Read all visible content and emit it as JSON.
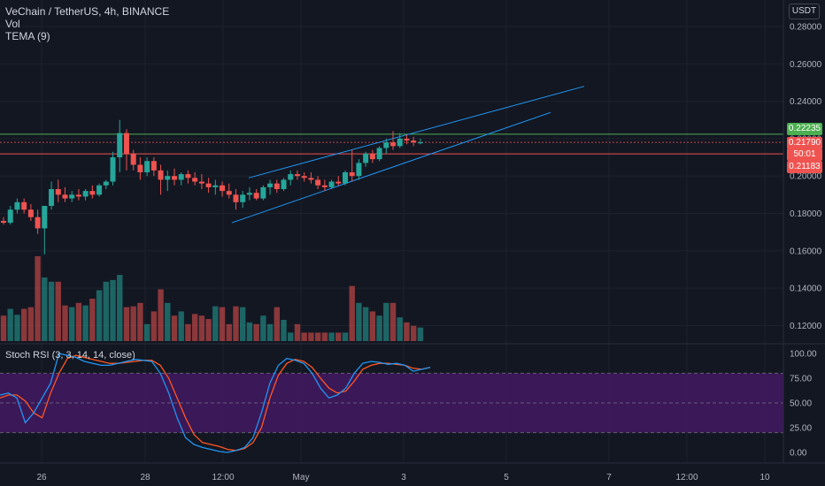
{
  "legend": {
    "symbol": "VeChain / TetherUS, 4h, BINANCE",
    "vol": "Vol",
    "tema": "TEMA (9)"
  },
  "currency_button": "USDT",
  "rsi_legend": "Stoch RSI (3, 3, 14, 14, close)",
  "price_labels": {
    "green_level": "0.22235",
    "last_price": "0.21790",
    "countdown": "50:01",
    "red_level": "0.21183"
  },
  "colors": {
    "background": "#131722",
    "up": "#26a69a",
    "down": "#ef5350",
    "channel": "#2196f3",
    "green_line": "#4caf50",
    "red_line": "#ef5350",
    "rsi_band": "#4a1a6b",
    "k_line": "#2196f3",
    "d_line": "#ff5722"
  },
  "chart_data": {
    "type": "candlestick",
    "price_axis": {
      "ticks": [
        "0.28000",
        "0.26000",
        "0.24000",
        "0.22000",
        "0.20000",
        "0.18000",
        "0.16000",
        "0.14000",
        "0.12000"
      ],
      "range": [
        0.113,
        0.287
      ]
    },
    "time_axis": {
      "ticks": [
        "26",
        "28",
        "12:00",
        "May",
        "3",
        "5",
        "7",
        "12:00",
        "10"
      ]
    },
    "candles": [
      [
        0.176,
        0.178,
        0.174,
        0.175
      ],
      [
        0.175,
        0.184,
        0.174,
        0.182
      ],
      [
        0.182,
        0.188,
        0.18,
        0.186
      ],
      [
        0.186,
        0.188,
        0.18,
        0.182
      ],
      [
        0.182,
        0.185,
        0.176,
        0.178
      ],
      [
        0.178,
        0.182,
        0.169,
        0.172
      ],
      [
        0.172,
        0.184,
        0.158,
        0.184
      ],
      [
        0.184,
        0.197,
        0.182,
        0.193
      ],
      [
        0.193,
        0.198,
        0.186,
        0.19
      ],
      [
        0.19,
        0.194,
        0.186,
        0.188
      ],
      [
        0.188,
        0.192,
        0.186,
        0.19
      ],
      [
        0.19,
        0.193,
        0.187,
        0.189
      ],
      [
        0.189,
        0.193,
        0.187,
        0.192
      ],
      [
        0.192,
        0.195,
        0.188,
        0.19
      ],
      [
        0.19,
        0.196,
        0.189,
        0.195
      ],
      [
        0.195,
        0.198,
        0.193,
        0.197
      ],
      [
        0.197,
        0.213,
        0.195,
        0.21
      ],
      [
        0.21,
        0.23,
        0.202,
        0.223
      ],
      [
        0.223,
        0.225,
        0.203,
        0.212
      ],
      [
        0.212,
        0.214,
        0.203,
        0.206
      ],
      [
        0.206,
        0.21,
        0.198,
        0.202
      ],
      [
        0.202,
        0.21,
        0.2,
        0.208
      ],
      [
        0.208,
        0.21,
        0.2,
        0.203
      ],
      [
        0.203,
        0.206,
        0.19,
        0.198
      ],
      [
        0.198,
        0.203,
        0.192,
        0.2
      ],
      [
        0.2,
        0.204,
        0.195,
        0.198
      ],
      [
        0.198,
        0.202,
        0.195,
        0.201
      ],
      [
        0.201,
        0.203,
        0.196,
        0.199
      ],
      [
        0.199,
        0.202,
        0.195,
        0.197
      ],
      [
        0.197,
        0.201,
        0.193,
        0.196
      ],
      [
        0.196,
        0.199,
        0.191,
        0.194
      ],
      [
        0.194,
        0.198,
        0.19,
        0.195
      ],
      [
        0.195,
        0.197,
        0.189,
        0.192
      ],
      [
        0.192,
        0.196,
        0.188,
        0.19
      ],
      [
        0.19,
        0.193,
        0.182,
        0.186
      ],
      [
        0.186,
        0.192,
        0.183,
        0.19
      ],
      [
        0.19,
        0.194,
        0.187,
        0.191
      ],
      [
        0.191,
        0.193,
        0.187,
        0.188
      ],
      [
        0.188,
        0.195,
        0.187,
        0.194
      ],
      [
        0.194,
        0.198,
        0.19,
        0.196
      ],
      [
        0.196,
        0.198,
        0.191,
        0.193
      ],
      [
        0.193,
        0.199,
        0.192,
        0.198
      ],
      [
        0.198,
        0.203,
        0.195,
        0.201
      ],
      [
        0.201,
        0.203,
        0.198,
        0.2
      ],
      [
        0.2,
        0.202,
        0.197,
        0.199
      ],
      [
        0.199,
        0.202,
        0.196,
        0.198
      ],
      [
        0.198,
        0.2,
        0.193,
        0.195
      ],
      [
        0.195,
        0.198,
        0.192,
        0.194
      ],
      [
        0.194,
        0.198,
        0.193,
        0.197
      ],
      [
        0.197,
        0.2,
        0.195,
        0.196
      ],
      [
        0.196,
        0.203,
        0.195,
        0.202
      ],
      [
        0.202,
        0.214,
        0.197,
        0.2
      ],
      [
        0.2,
        0.209,
        0.198,
        0.207
      ],
      [
        0.207,
        0.213,
        0.205,
        0.212
      ],
      [
        0.212,
        0.214,
        0.207,
        0.209
      ],
      [
        0.209,
        0.216,
        0.208,
        0.215
      ],
      [
        0.215,
        0.22,
        0.212,
        0.218
      ],
      [
        0.218,
        0.224,
        0.214,
        0.216
      ],
      [
        0.216,
        0.223,
        0.215,
        0.22
      ],
      [
        0.22,
        0.222,
        0.217,
        0.219
      ],
      [
        0.219,
        0.221,
        0.216,
        0.218
      ],
      [
        0.218,
        0.22,
        0.217,
        0.218
      ]
    ],
    "volume_relative": [
      0.3,
      0.38,
      0.31,
      0.38,
      0.4,
      1.0,
      0.75,
      0.7,
      0.7,
      0.42,
      0.4,
      0.45,
      0.42,
      0.5,
      0.6,
      0.7,
      0.72,
      0.78,
      0.4,
      0.41,
      0.45,
      0.2,
      0.35,
      0.61,
      0.45,
      0.3,
      0.35,
      0.2,
      0.32,
      0.3,
      0.26,
      0.41,
      0.4,
      0.2,
      0.41,
      0.4,
      0.22,
      0.2,
      0.3,
      0.2,
      0.4,
      0.25,
      0.1,
      0.2,
      0.1,
      0.1,
      0.1,
      0.1,
      0.1,
      0.1,
      0.1,
      0.65,
      0.45,
      0.4,
      0.35,
      0.3,
      0.45,
      0.45,
      0.28,
      0.22,
      0.18,
      0.16
    ],
    "channel_upper": [
      [
        0.199,
        0.248
      ]
    ],
    "channel_lower": [
      [
        0.175,
        0.234
      ]
    ],
    "horizontal_levels": {
      "green": 0.22235,
      "red": 0.21183
    },
    "stoch_rsi": {
      "axis_ticks": [
        "100.00",
        "75.00",
        "50.00",
        "25.00",
        "0.00"
      ],
      "upper_band": 80,
      "lower_band": 20,
      "k": [
        58,
        60,
        55,
        30,
        40,
        55,
        70,
        100,
        98,
        96,
        92,
        90,
        88,
        88,
        90,
        92,
        94,
        93,
        92,
        80,
        60,
        35,
        15,
        8,
        5,
        3,
        1,
        0,
        2,
        5,
        15,
        40,
        70,
        88,
        95,
        93,
        90,
        80,
        65,
        55,
        58,
        65,
        80,
        90,
        92,
        91,
        89,
        90,
        88,
        82,
        84,
        86
      ],
      "d": [
        55,
        58,
        58,
        52,
        40,
        35,
        60,
        80,
        95,
        98,
        96,
        94,
        92,
        90,
        90,
        91,
        92,
        93,
        93,
        88,
        75,
        55,
        35,
        18,
        10,
        8,
        6,
        3,
        2,
        4,
        10,
        25,
        55,
        78,
        90,
        94,
        92,
        86,
        75,
        65,
        60,
        62,
        72,
        84,
        88,
        90,
        90,
        89,
        88,
        85,
        84,
        86
      ]
    }
  }
}
